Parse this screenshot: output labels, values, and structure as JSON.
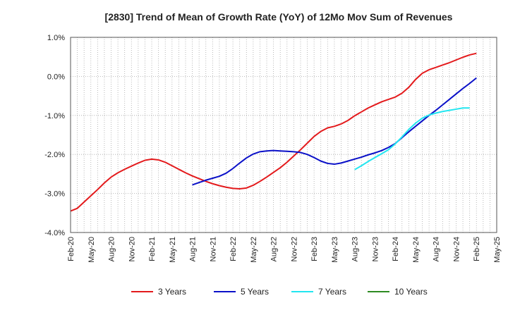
{
  "chart_data": {
    "type": "line",
    "title": "[2830]  Trend of Mean of Growth Rate (YoY) of 12Mo Mov Sum of Revenues",
    "xlabel": "",
    "ylabel": "",
    "ylim": [
      -4.0,
      1.0
    ],
    "yticks": [
      1.0,
      0.0,
      -1.0,
      -2.0,
      -3.0,
      -4.0
    ],
    "ytick_labels": [
      "1.0%",
      "0.0%",
      "-1.0%",
      "-2.0%",
      "-3.0%",
      "-4.0%"
    ],
    "x_start": "2020-02",
    "x_months": 63,
    "xtick_labels": [
      "Feb-20",
      "May-20",
      "Aug-20",
      "Nov-20",
      "Feb-21",
      "May-21",
      "Aug-21",
      "Nov-21",
      "Feb-22",
      "May-22",
      "Aug-22",
      "Nov-22",
      "Feb-23",
      "May-23",
      "Aug-23",
      "Nov-23",
      "Feb-24",
      "May-24",
      "Aug-24",
      "Nov-24",
      "Feb-25",
      "May-25"
    ],
    "grid": true,
    "legend_position": "bottom",
    "series": [
      {
        "name": "3 Years",
        "color": "#e31a1c",
        "start_month_index": 0,
        "values": [
          -3.45,
          -3.38,
          -3.22,
          -3.06,
          -2.9,
          -2.73,
          -2.58,
          -2.47,
          -2.38,
          -2.3,
          -2.22,
          -2.15,
          -2.12,
          -2.14,
          -2.2,
          -2.29,
          -2.38,
          -2.47,
          -2.55,
          -2.62,
          -2.69,
          -2.75,
          -2.8,
          -2.84,
          -2.87,
          -2.88,
          -2.86,
          -2.79,
          -2.69,
          -2.58,
          -2.46,
          -2.34,
          -2.2,
          -2.04,
          -1.88,
          -1.71,
          -1.54,
          -1.41,
          -1.32,
          -1.28,
          -1.22,
          -1.13,
          -1.01,
          -0.91,
          -0.81,
          -0.73,
          -0.65,
          -0.59,
          -0.53,
          -0.43,
          -0.28,
          -0.08,
          0.08,
          0.17,
          0.23,
          0.29,
          0.35,
          0.42,
          0.49,
          0.55,
          0.59
        ]
      },
      {
        "name": "5 Years",
        "color": "#0a10c8",
        "start_month_index": 18,
        "values": [
          -2.78,
          -2.72,
          -2.66,
          -2.61,
          -2.56,
          -2.48,
          -2.36,
          -2.22,
          -2.09,
          -1.99,
          -1.93,
          -1.91,
          -1.9,
          -1.91,
          -1.92,
          -1.93,
          -1.95,
          -2.0,
          -2.08,
          -2.17,
          -2.23,
          -2.25,
          -2.22,
          -2.17,
          -2.12,
          -2.07,
          -2.01,
          -1.96,
          -1.9,
          -1.82,
          -1.72,
          -1.57,
          -1.42,
          -1.28,
          -1.14,
          -1.0,
          -0.87,
          -0.73,
          -0.59,
          -0.45,
          -0.31,
          -0.18,
          -0.04
        ]
      },
      {
        "name": "7 Years",
        "color": "#22e6f0",
        "start_month_index": 42,
        "values": [
          -2.39,
          -2.29,
          -2.18,
          -2.08,
          -1.98,
          -1.88,
          -1.73,
          -1.55,
          -1.36,
          -1.2,
          -1.07,
          -0.99,
          -0.94,
          -0.9,
          -0.87,
          -0.84,
          -0.81,
          -0.81
        ]
      },
      {
        "name": "10 Years",
        "color": "#2e8b22",
        "start_month_index": 0,
        "values": []
      }
    ]
  }
}
